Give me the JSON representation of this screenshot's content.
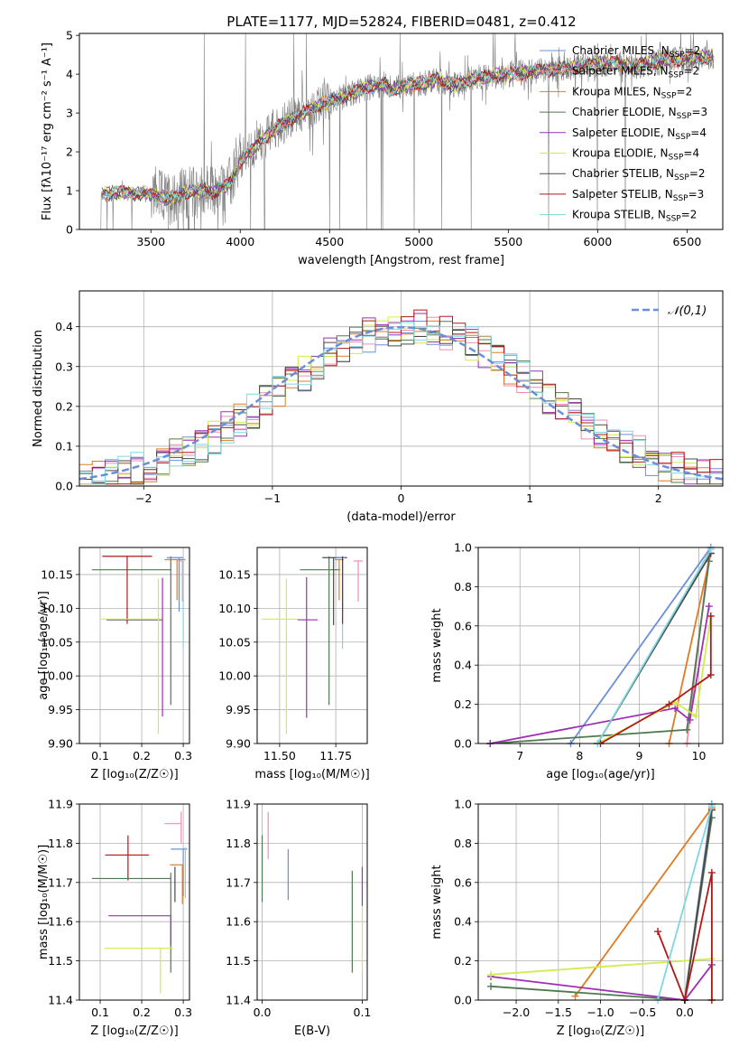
{
  "figure_title": "PLATE=1177, MJD=52824, FIBERID=0481, z=0.412",
  "series_colors": {
    "Chabrier MILES": "#6a8fd8",
    "Salpeter MILES": "#f28cb0",
    "Kroupa MILES": "#e07b24",
    "Chabrier ELODIE": "#4f7a4f",
    "Salpeter ELODIE": "#9b30b0",
    "Kroupa ELODIE": "#d4ea4c",
    "Chabrier STELIB": "#4a4a4a",
    "Salpeter STELIB": "#b21818",
    "Kroupa STELIB": "#7fd6e0",
    "N01": "#6a8fd8",
    "data": "#808080"
  },
  "chart_data": [
    {
      "id": "spectrum",
      "type": "line",
      "title": "PLATE=1177, MJD=52824, FIBERID=0481, z=0.412",
      "xlabel": "wavelength [Angstrom, rest frame]",
      "ylabel": "Flux [fλ10⁻¹⁷ erg cm⁻² s⁻¹ A⁻¹]",
      "xlim": [
        3100,
        6700
      ],
      "ylim": [
        0,
        5.05
      ],
      "xticks": [
        3500,
        4000,
        4500,
        5000,
        5500,
        6000,
        6500
      ],
      "yticks": [
        0,
        1,
        2,
        3,
        4,
        5
      ],
      "legend_position": "right",
      "legend": [
        "Chabrier MILES, N_SSP=2",
        "Salpeter MILES, N_SSP=2",
        "Kroupa MILES, N_SSP=2",
        "Chabrier ELODIE, N_SSP=3",
        "Salpeter ELODIE, N_SSP=4",
        "Kroupa ELODIE, N_SSP=4",
        "Chabrier STELIB, N_SSP=2",
        "Salpeter STELIB, N_SSP=3",
        "Kroupa STELIB, N_SSP=2"
      ],
      "continuum": {
        "x": [
          3220,
          3300,
          3400,
          3500,
          3600,
          3700,
          3800,
          3850,
          3900,
          3950,
          4000,
          4100,
          4200,
          4300,
          4400,
          4500,
          4600,
          4700,
          4800,
          4850,
          4900,
          5000,
          5100,
          5200,
          5300,
          5400,
          5500,
          5600,
          5700,
          5800,
          5900,
          6000,
          6100,
          6200,
          6300,
          6400,
          6500,
          6600
        ],
        "y": [
          0.9,
          0.95,
          0.95,
          0.9,
          0.8,
          0.95,
          1.0,
          0.95,
          1.1,
          1.2,
          1.75,
          2.2,
          2.6,
          2.9,
          3.1,
          3.3,
          3.45,
          3.65,
          3.75,
          3.6,
          3.7,
          3.75,
          3.85,
          3.7,
          3.9,
          3.95,
          4.0,
          4.05,
          4.1,
          4.15,
          4.2,
          4.25,
          4.3,
          4.2,
          4.3,
          4.35,
          4.4,
          4.45
        ]
      }
    },
    {
      "id": "residuals",
      "type": "bar",
      "xlabel": "(data-model)/error",
      "ylabel": "Normed distribution",
      "xlim": [
        -2.5,
        2.5
      ],
      "ylim": [
        0,
        0.49
      ],
      "xticks": [
        -2,
        -1,
        0,
        1,
        2
      ],
      "yticks": [
        0.0,
        0.1,
        0.2,
        0.3,
        0.4
      ],
      "grid": true,
      "legend": [
        "𝒩(0,1)"
      ],
      "legend_position": "top-right"
    },
    {
      "id": "age-vs-Z",
      "type": "scatter",
      "xlabel": "Z [log₁₀(Z/Z☉)]",
      "ylabel": "age  [log₁₀(age/yr)]",
      "xlim": [
        0.05,
        0.315
      ],
      "ylim": [
        9.9,
        10.19
      ],
      "xticks": [
        0.1,
        0.2,
        0.3
      ],
      "yticks": [
        9.9,
        9.95,
        10.0,
        10.05,
        10.1,
        10.15
      ],
      "grid": true,
      "points": [
        {
          "series": "Chabrier ELODIE",
          "x": 0.27,
          "y": 10.157,
          "xerr": [
            0.19,
            0.0
          ],
          "yerr": [
            0.2,
            0.02
          ]
        },
        {
          "series": "Salpeter STELIB",
          "x": 0.165,
          "y": 10.177,
          "xerr": [
            0.06,
            0.06
          ],
          "yerr": [
            0.1,
            0.0
          ]
        },
        {
          "series": "Kroupa MILES",
          "x": 0.285,
          "y": 10.172,
          "xerr": [
            0.03,
            0.02
          ],
          "yerr": [
            0.06,
            0.0
          ]
        },
        {
          "series": "Chabrier MILES",
          "x": 0.29,
          "y": 10.175,
          "xerr": [
            0.03,
            0.01
          ],
          "yerr": [
            0.08,
            0.0
          ]
        },
        {
          "series": "Salpeter MILES",
          "x": 0.298,
          "y": 10.17,
          "xerr": [
            0.01,
            0.0
          ],
          "yerr": [
            0.06,
            0.0
          ]
        },
        {
          "series": "Kroupa STELIB",
          "x": 0.3,
          "y": 10.17,
          "xerr": [
            0.005,
            0.0
          ],
          "yerr": [
            0.13,
            0.0
          ]
        },
        {
          "series": "Chabrier STELIB",
          "x": 0.2,
          "y": 10.083,
          "xerr": [
            0.085,
            0.05
          ],
          "yerr": [
            0.0,
            0.0
          ]
        },
        {
          "series": "Kroupa ELODIE",
          "x": 0.24,
          "y": 10.084,
          "xerr": [
            0.14,
            0.01
          ],
          "yerr": [
            0.17,
            0.06
          ]
        },
        {
          "series": "Salpeter ELODIE",
          "x": 0.25,
          "y": 10.08,
          "xerr": [
            0.0,
            0.0
          ],
          "yerr": [
            0.14,
            0.065
          ]
        }
      ]
    },
    {
      "id": "age-vs-mass",
      "type": "scatter",
      "xlabel": "mass [log₁₀(M/M☉)]",
      "ylabel": "",
      "xlim": [
        11.4,
        11.89
      ],
      "ylim": [
        9.9,
        10.19
      ],
      "xticks": [
        11.5,
        11.75
      ],
      "yticks": [
        9.9,
        9.95,
        10.0,
        10.05,
        10.1,
        10.15
      ],
      "grid": true,
      "points": [
        {
          "series": "Chabrier ELODIE",
          "x": 11.72,
          "y": 10.157,
          "xerr": [
            0.13,
            0.05
          ],
          "yerr": [
            0.2,
            0.02
          ]
        },
        {
          "series": "Chabrier STELIB",
          "x": 11.74,
          "y": 10.175,
          "xerr": [
            0.05,
            0.06
          ],
          "yerr": [
            0.1,
            0.0
          ]
        },
        {
          "series": "Kroupa MILES",
          "x": 11.765,
          "y": 10.172,
          "xerr": [
            0.02,
            0.02
          ],
          "yerr": [
            0.06,
            0.0
          ]
        },
        {
          "series": "Chabrier MILES",
          "x": 11.78,
          "y": 10.175,
          "xerr": [
            0.03,
            0.01
          ],
          "yerr": [
            0.08,
            0.0
          ]
        },
        {
          "series": "Salpeter MILES",
          "x": 11.85,
          "y": 10.17,
          "xerr": [
            0.02,
            0.02
          ],
          "yerr": [
            0.06,
            0.0
          ]
        },
        {
          "series": "Kroupa STELIB",
          "x": 11.78,
          "y": 10.17,
          "xerr": [
            0.0,
            0.0
          ],
          "yerr": [
            0.13,
            0.0
          ]
        },
        {
          "series": "Salpeter STELIB",
          "x": 11.78,
          "y": 10.177,
          "xerr": [
            0.0,
            0.0
          ],
          "yerr": [
            0.1,
            0.0
          ]
        },
        {
          "series": "Kroupa ELODIE",
          "x": 11.53,
          "y": 10.084,
          "xerr": [
            0.11,
            0.05
          ],
          "yerr": [
            0.17,
            0.06
          ]
        },
        {
          "series": "Salpeter ELODIE",
          "x": 11.62,
          "y": 10.083,
          "xerr": [
            0.04,
            0.05
          ],
          "yerr": [
            0.145,
            0.063
          ]
        }
      ]
    },
    {
      "id": "weight-vs-age",
      "type": "line",
      "xlabel": "age  [log₁₀(age/yr)]",
      "ylabel": "mass weight",
      "xlim": [
        6.3,
        10.4
      ],
      "ylim": [
        0,
        1.0
      ],
      "xticks": [
        7,
        8,
        9,
        10
      ],
      "yticks": [
        0.0,
        0.2,
        0.4,
        0.6,
        0.8,
        1.0
      ],
      "grid": true,
      "series": [
        {
          "name": "Chabrier MILES",
          "x": [
            7.85,
            10.2
          ],
          "y": [
            0.0,
            1.0
          ]
        },
        {
          "name": "Salpeter MILES",
          "x": [
            9.8,
            10.17
          ],
          "y": [
            0.0,
            0.97
          ]
        },
        {
          "name": "Kroupa MILES",
          "x": [
            9.5,
            10.2
          ],
          "y": [
            0.0,
            0.97
          ]
        },
        {
          "name": "Chabrier ELODIE",
          "x": [
            6.5,
            9.8,
            10.17
          ],
          "y": [
            0.0,
            0.07,
            0.93
          ]
        },
        {
          "name": "Salpeter ELODIE",
          "x": [
            6.5,
            9.6,
            9.85,
            10.17
          ],
          "y": [
            0.0,
            0.18,
            0.12,
            0.7
          ]
        },
        {
          "name": "Kroupa ELODIE",
          "x": [
            8.3,
            9.6,
            9.95,
            10.2
          ],
          "y": [
            0.0,
            0.21,
            0.14,
            0.65
          ]
        },
        {
          "name": "Chabrier STELIB",
          "x": [
            8.3,
            10.2
          ],
          "y": [
            0.0,
            0.97
          ]
        },
        {
          "name": "Salpeter STELIB",
          "x": [
            8.35,
            9.5,
            10.2,
            10.2
          ],
          "y": [
            0.0,
            0.2,
            0.35,
            0.65
          ]
        },
        {
          "name": "Kroupa STELIB",
          "x": [
            8.3,
            10.2
          ],
          "y": [
            0.0,
            0.99
          ]
        }
      ]
    },
    {
      "id": "mass-vs-Z",
      "type": "scatter",
      "xlabel": "Z [log₁₀(Z/Z☉)]",
      "ylabel": "mass [log₁₀(M/M☉)]",
      "xlim": [
        0.05,
        0.315
      ],
      "ylim": [
        11.4,
        11.9
      ],
      "xticks": [
        0.1,
        0.2,
        0.3
      ],
      "yticks": [
        11.4,
        11.5,
        11.6,
        11.7,
        11.8,
        11.9
      ],
      "grid": true,
      "points": [
        {
          "series": "Salpeter MILES",
          "x": 0.295,
          "y": 11.85,
          "xerr": [
            0.04,
            0.0
          ],
          "yerr": [
            0.05,
            0.03
          ]
        },
        {
          "series": "Chabrier MILES",
          "x": 0.3,
          "y": 11.785,
          "xerr": [
            0.03,
            0.01
          ],
          "yerr": [
            0.12,
            0.0
          ]
        },
        {
          "series": "Kroupa MILES",
          "x": 0.298,
          "y": 11.745,
          "xerr": [
            0.03,
            0.0
          ],
          "yerr": [
            0.1,
            0.0
          ]
        },
        {
          "series": "Salpeter STELIB",
          "x": 0.167,
          "y": 11.77,
          "xerr": [
            0.055,
            0.05
          ],
          "yerr": [
            0.065,
            0.05
          ]
        },
        {
          "series": "Chabrier ELODIE",
          "x": 0.27,
          "y": 11.71,
          "xerr": [
            0.19,
            0.0
          ],
          "yerr": [
            0.24,
            0.015
          ]
        },
        {
          "series": "Chabrier STELIB",
          "x": 0.28,
          "y": 11.71,
          "xerr": [
            0.0,
            0.0
          ],
          "yerr": [
            0.06,
            0.03
          ]
        },
        {
          "series": "Salpeter ELODIE",
          "x": 0.27,
          "y": 11.615,
          "xerr": [
            0.15,
            0.0
          ],
          "yerr": [
            0.075,
            0.0
          ]
        },
        {
          "series": "Kroupa ELODIE",
          "x": 0.245,
          "y": 11.532,
          "xerr": [
            0.135,
            0.03
          ],
          "yerr": [
            0.115,
            0.0
          ]
        },
        {
          "series": "Kroupa STELIB",
          "x": 0.305,
          "y": 11.76,
          "xerr": [
            0.0,
            0.0
          ],
          "yerr": [
            0.1,
            0.03
          ]
        }
      ]
    },
    {
      "id": "mass-vs-EBV",
      "type": "scatter",
      "xlabel": "E(B-V)",
      "ylabel": "",
      "xlim": [
        -0.005,
        0.105
      ],
      "ylim": [
        11.4,
        11.9
      ],
      "xticks": [
        0.0,
        0.1
      ],
      "yticks": [
        11.4,
        11.5,
        11.6,
        11.7,
        11.8,
        11.9
      ],
      "grid": true,
      "points": [
        {
          "series": "Chabrier ELODIE",
          "x": 0.0,
          "y": 11.74,
          "xerr": [
            0.0,
            0.0
          ],
          "yerr": [
            0.09,
            0.08
          ]
        },
        {
          "series": "Salpeter MILES",
          "x": 0.006,
          "y": 11.82,
          "xerr": [
            0.0,
            0.0
          ],
          "yerr": [
            0.06,
            0.06
          ]
        },
        {
          "series": "Chabrier MILES",
          "x": 0.026,
          "y": 11.72,
          "xerr": [
            0.0,
            0.0
          ],
          "yerr": [
            0.065,
            0.065
          ]
        },
        {
          "series": "Chabrier ELODIE",
          "x": 0.09,
          "y": 11.6,
          "xerr": [
            0.0,
            0.0
          ],
          "yerr": [
            0.13,
            0.13
          ]
        },
        {
          "series": "Salpeter ELODIE",
          "x": 0.1,
          "y": 11.69,
          "xerr": [
            0.0,
            0.0
          ],
          "yerr": [
            0.05,
            0.05
          ]
        },
        {
          "series": "Kroupa ELODIE",
          "x": 0.1,
          "y": 11.555,
          "xerr": [
            0.0,
            0.0
          ],
          "yerr": [
            0.085,
            0.085
          ]
        }
      ]
    },
    {
      "id": "weight-vs-Z",
      "type": "line",
      "xlabel": "Z [log₁₀(Z/Z☉)]",
      "ylabel": "mass weight",
      "xlim": [
        -2.45,
        0.45
      ],
      "ylim": [
        0,
        1.0
      ],
      "xticks": [
        -2.0,
        -1.5,
        -1.0,
        -0.5,
        0.0
      ],
      "yticks": [
        0.0,
        0.2,
        0.4,
        0.6,
        0.8,
        1.0
      ],
      "grid": true,
      "series": [
        {
          "name": "Chabrier MILES",
          "x": [
            0.0,
            0.32
          ],
          "y": [
            0.0,
            1.0
          ]
        },
        {
          "name": "Salpeter MILES",
          "x": [
            0.0,
            0.32
          ],
          "y": [
            0.0,
            0.97
          ]
        },
        {
          "name": "Kroupa MILES",
          "x": [
            -1.3,
            0.32
          ],
          "y": [
            0.02,
            0.98
          ]
        },
        {
          "name": "Chabrier ELODIE",
          "x": [
            -2.3,
            0.0,
            0.32
          ],
          "y": [
            0.07,
            0.0,
            0.93
          ]
        },
        {
          "name": "Salpeter ELODIE",
          "x": [
            -2.3,
            0.0,
            0.32
          ],
          "y": [
            0.12,
            0.0,
            0.18
          ]
        },
        {
          "name": "Kroupa ELODIE",
          "x": [
            -2.3,
            0.32,
            0.32
          ],
          "y": [
            0.13,
            0.21,
            0.0
          ]
        },
        {
          "name": "Chabrier STELIB",
          "x": [
            0.0,
            0.32
          ],
          "y": [
            0.0,
            0.97
          ]
        },
        {
          "name": "Salpeter STELIB",
          "x": [
            -0.32,
            0.0,
            0.32,
            0.32
          ],
          "y": [
            0.35,
            0.0,
            0.65,
            0.0
          ]
        },
        {
          "name": "Kroupa STELIB",
          "x": [
            -0.32,
            0.32
          ],
          "y": [
            0.0,
            0.99
          ]
        }
      ]
    }
  ]
}
